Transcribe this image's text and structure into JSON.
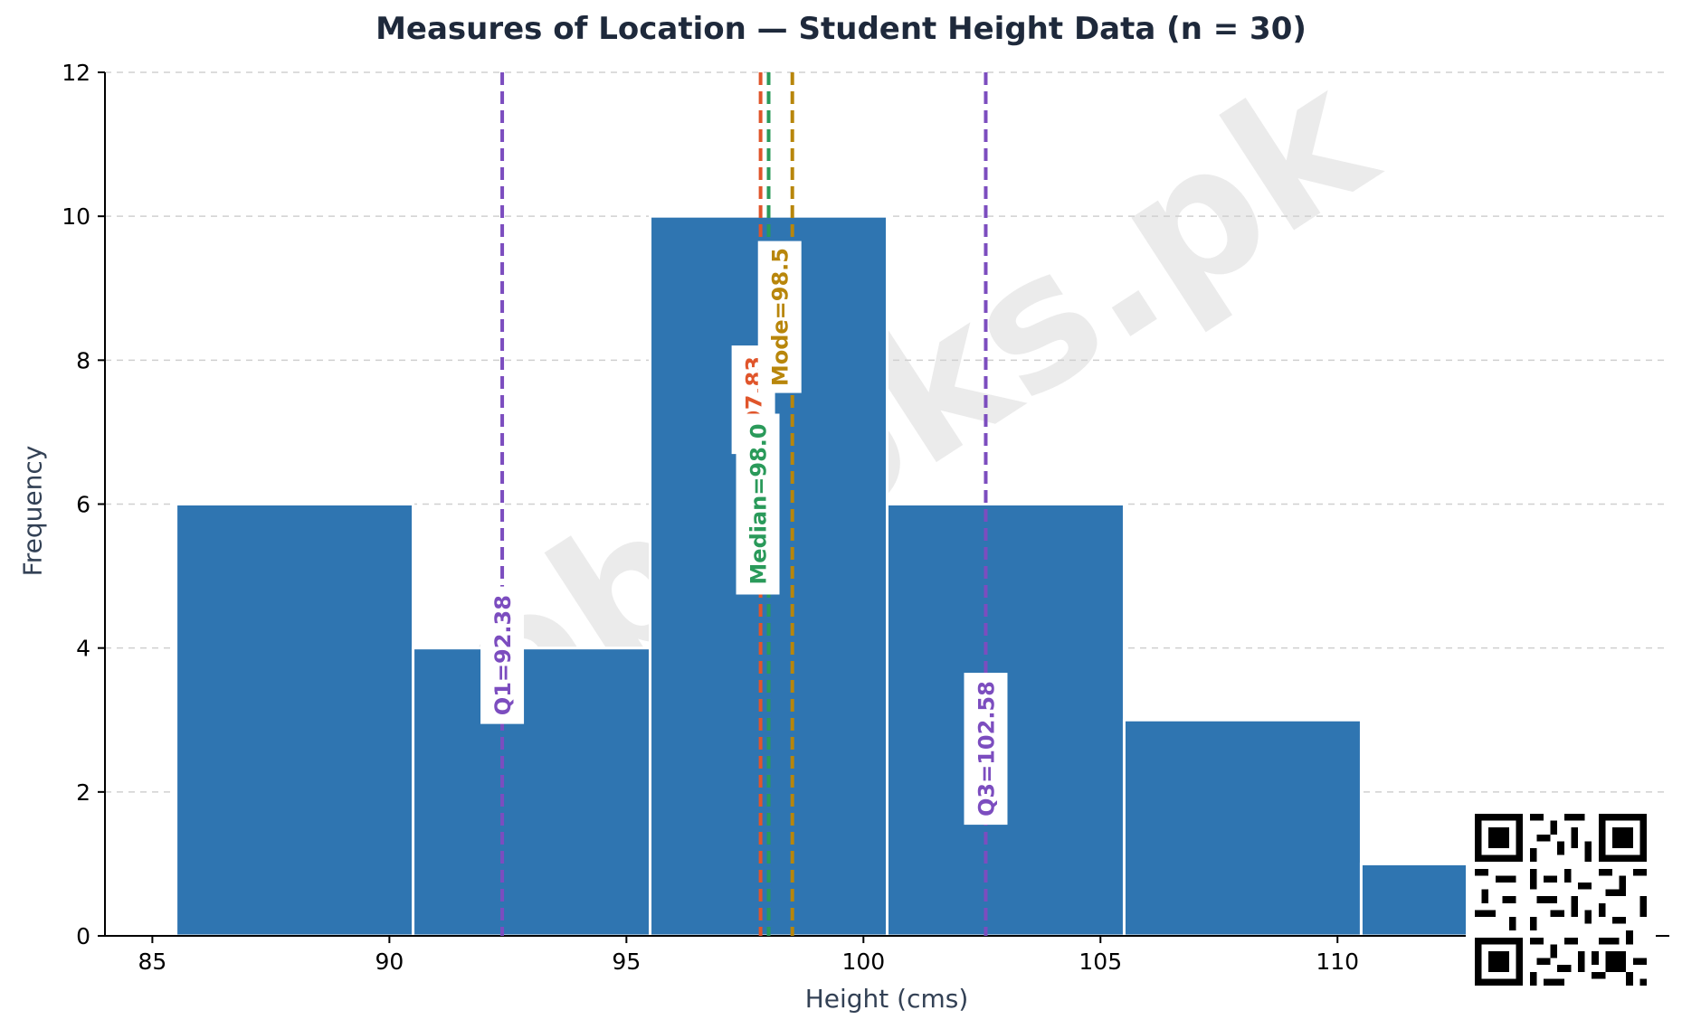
{
  "chart_data": {
    "type": "bar",
    "title": "Measures of Location — Student Height Data (n = 30)",
    "xlabel": "Height (cms)",
    "ylabel": "Frequency",
    "xlim": [
      84,
      117
    ],
    "ylim": [
      0,
      12
    ],
    "xticks": [
      85,
      90,
      95,
      100,
      105,
      110
    ],
    "yticks": [
      0,
      2,
      4,
      6,
      8,
      10,
      12
    ],
    "bins": [
      {
        "start": 85.5,
        "end": 90.5,
        "count": 6
      },
      {
        "start": 90.5,
        "end": 95.5,
        "count": 4
      },
      {
        "start": 95.5,
        "end": 100.5,
        "count": 10
      },
      {
        "start": 100.5,
        "end": 105.5,
        "count": 6
      },
      {
        "start": 105.5,
        "end": 110.5,
        "count": 3
      },
      {
        "start": 110.5,
        "end": 115.5,
        "count": 1
      }
    ],
    "bar_color": "#2f75b1",
    "grid": "horizontal dashed",
    "reference_lines": [
      {
        "label": "Q1=92.38",
        "x": 92.38,
        "color": "#7c4dbf"
      },
      {
        "label": "=97.83",
        "x": 97.83,
        "color": "#e0552b"
      },
      {
        "label": "Median=98.0",
        "x": 98.0,
        "color": "#2a9a5a"
      },
      {
        "label": "Mode=98.5",
        "x": 98.5,
        "color": "#b8860b"
      },
      {
        "label": "Q3=102.58",
        "x": 102.58,
        "color": "#7c4dbf"
      }
    ]
  },
  "watermark": "freebooks.pk",
  "qr_code": "qr-code-icon"
}
